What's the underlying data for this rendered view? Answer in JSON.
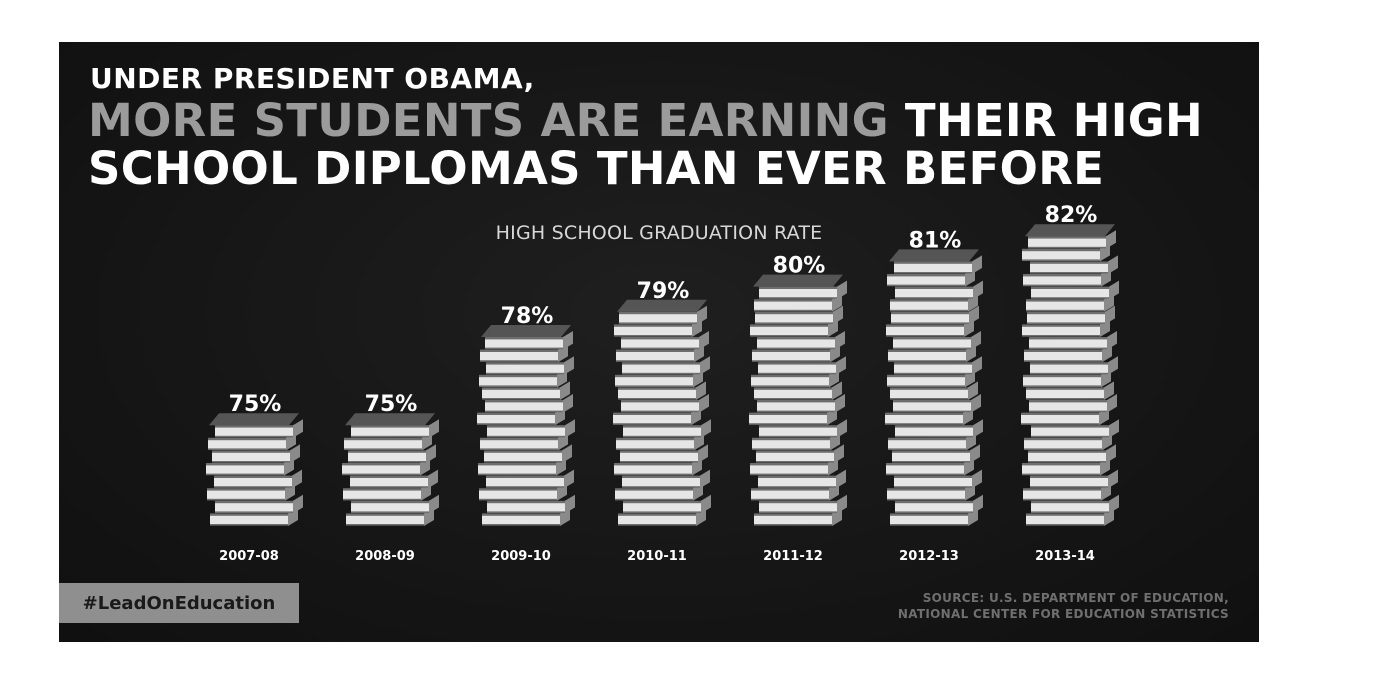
{
  "headline": {
    "line1": "UNDER PRESIDENT OBAMA,",
    "line2_gray": "MORE STUDENTS ARE EARNING",
    "line2_white": "THEIR HIGH",
    "line3": "SCHOOL DIPLOMAS THAN EVER BEFORE"
  },
  "hashtag": "#LeadOnEducation",
  "source": {
    "line1": "SOURCE: U.S. DEPARTMENT OF EDUCATION,",
    "line2": "NATIONAL CENTER FOR EDUCATION STATISTICS"
  },
  "colors": {
    "background": "#161616",
    "book_cover": "#6e6e6e",
    "book_pages": "#e6e6e6",
    "label": "#ffffff",
    "hashtag_box": "#8f8f8f"
  },
  "chart_data": {
    "type": "bar",
    "title": "HIGH SCHOOL GRADUATION RATE",
    "categories": [
      "2007-08",
      "2008-09",
      "2009-10",
      "2010-11",
      "2011-12",
      "2012-13",
      "2013-14"
    ],
    "values": [
      75,
      75,
      78,
      79,
      80,
      81,
      82
    ],
    "value_labels": [
      "75%",
      "75%",
      "78%",
      "79%",
      "80%",
      "81%",
      "82%"
    ],
    "mark_style": "stacked books",
    "grid": false,
    "legend": "none"
  }
}
